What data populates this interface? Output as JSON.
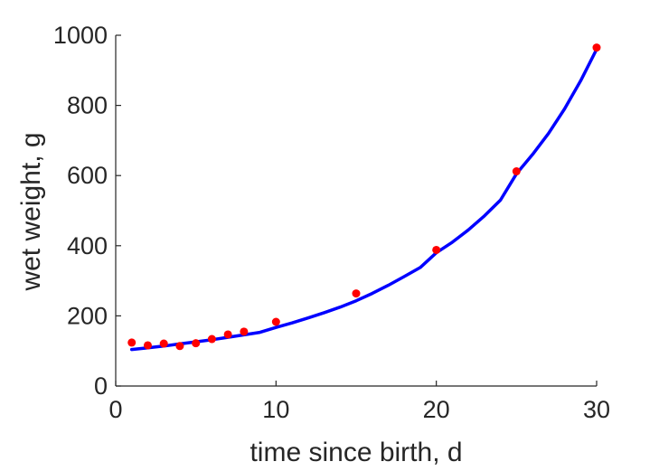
{
  "chart_data": {
    "type": "scatter",
    "title": "",
    "xlabel": "time since birth, d",
    "ylabel": "wet weight, g",
    "xlim": [
      0,
      30
    ],
    "ylim": [
      0,
      1000
    ],
    "xticks": [
      0,
      10,
      20,
      30
    ],
    "yticks": [
      0,
      200,
      400,
      600,
      800,
      1000
    ],
    "grid": false,
    "legend": "none",
    "series": [
      {
        "kind": "points",
        "color": "#ff0000",
        "x": [
          1,
          2,
          3,
          4,
          5,
          6,
          7,
          8,
          10,
          15,
          20,
          25,
          30
        ],
        "y": [
          124,
          116,
          121,
          114,
          122,
          134,
          147,
          155,
          183,
          264,
          388,
          612,
          965
        ]
      },
      {
        "kind": "curve",
        "color": "#0000ff",
        "x": [
          1,
          2,
          3,
          4,
          5,
          6,
          7,
          8,
          9,
          10,
          11,
          12,
          13,
          14,
          15,
          16,
          17,
          18,
          19,
          20,
          21,
          22,
          23,
          24,
          25,
          26,
          27,
          28,
          29,
          30
        ],
        "y": [
          104,
          109,
          114,
          120,
          126,
          132,
          139,
          146,
          153,
          167,
          180,
          194,
          209,
          225,
          243,
          264,
          287,
          312,
          338,
          380,
          410,
          445,
          485,
          530,
          605,
          660,
          720,
          790,
          870,
          960
        ]
      }
    ]
  }
}
